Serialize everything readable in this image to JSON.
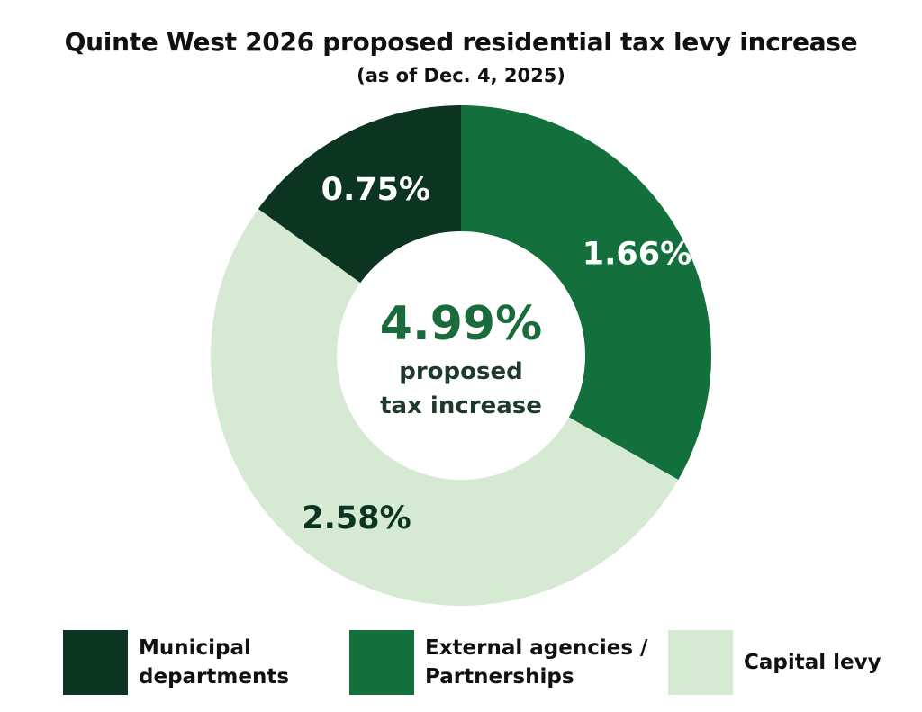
{
  "chart_data": {
    "type": "pie",
    "style": "donut",
    "title": "Quinte West 2026 proposed residential tax levy increase",
    "subtitle": "(as of Dec. 4, 2025)",
    "categories": [
      "Municipal departments",
      "External agencies / Partnerships",
      "Capital levy"
    ],
    "values": [
      0.75,
      1.66,
      2.58
    ],
    "value_labels": [
      "0.75%",
      "1.66%",
      "2.58%"
    ],
    "colors": [
      "#0b3520",
      "#13703d",
      "#d6ead3"
    ],
    "label_colors": [
      "#ffffff",
      "#ffffff",
      "#0b3520"
    ],
    "center_value": "4.99%",
    "center_caption_line1": "proposed",
    "center_caption_line2": "tax increase",
    "legend_placement": "bottom",
    "legend": [
      {
        "line1": "Municipal",
        "line2": "departments",
        "color": "#0b3520"
      },
      {
        "line1": "External agencies /",
        "line2": "Partnerships",
        "color": "#13703d"
      },
      {
        "line1": "Capital levy",
        "line2": "",
        "color": "#d6ead3"
      }
    ]
  }
}
